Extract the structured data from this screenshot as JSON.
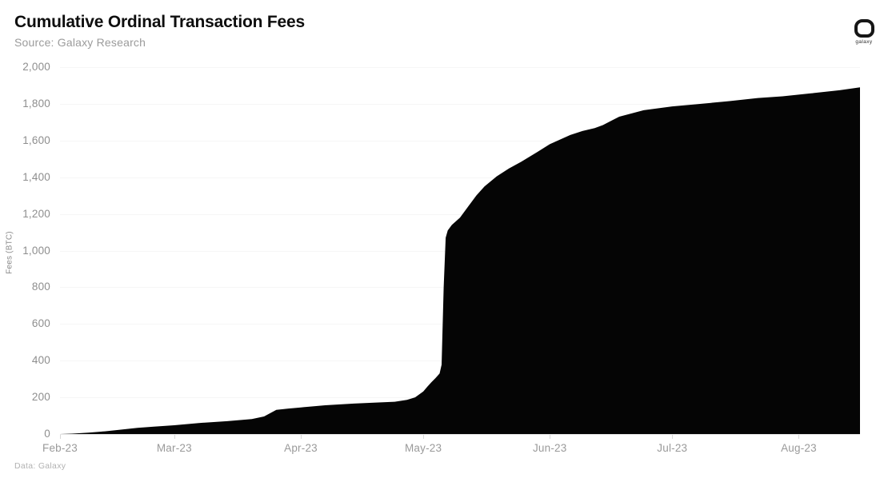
{
  "header": {
    "title": "Cumulative Ordinal Transaction Fees",
    "subtitle": "Source: Galaxy Research"
  },
  "logo": {
    "label": "galaxy"
  },
  "footer": {
    "credit": "Data: Galaxy"
  },
  "colors": {
    "background": "#ffffff",
    "area_fill": "#050505",
    "gridline": "#f6f6f6",
    "axis_line": "#e4e4e4",
    "tick_mark": "#d8d8d8",
    "axis_label": "#9a9a9a",
    "title_text": "#0e0e0e",
    "subtitle_text": "#9b9b9b"
  },
  "chart_data": {
    "type": "area",
    "title": "Cumulative Ordinal Transaction Fees",
    "subtitle": "Source: Galaxy Research",
    "xlabel": "",
    "ylabel": "Fees (BTC)",
    "ylim": [
      0,
      2000
    ],
    "grid": "horizontal",
    "legend": "none",
    "fill_color": "#050505",
    "x_unit": "days since 2023-02-01",
    "x_domain": [
      0,
      196
    ],
    "y_ticks": [
      {
        "label": "0",
        "v": 0
      },
      {
        "label": "200",
        "v": 200
      },
      {
        "label": "400",
        "v": 400
      },
      {
        "label": "600",
        "v": 600
      },
      {
        "label": "800",
        "v": 800
      },
      {
        "label": "1,000",
        "v": 1000
      },
      {
        "label": "1,200",
        "v": 1200
      },
      {
        "label": "1,400",
        "v": 1400
      },
      {
        "label": "1,600",
        "v": 1600
      },
      {
        "label": "1,800",
        "v": 1800
      },
      {
        "label": "2,000",
        "v": 2000
      }
    ],
    "x_ticks": [
      {
        "label": "Feb-23",
        "d": 0
      },
      {
        "label": "Mar-23",
        "d": 28
      },
      {
        "label": "Apr-23",
        "d": 59
      },
      {
        "label": "May-23",
        "d": 89
      },
      {
        "label": "Jun-23",
        "d": 120
      },
      {
        "label": "Jul-23",
        "d": 150
      },
      {
        "label": "Aug-23",
        "d": 181
      }
    ],
    "series": [
      {
        "name": "Cumulative ordinal transaction fees (BTC)",
        "points": [
          [
            0,
            0
          ],
          [
            3,
            2
          ],
          [
            7,
            8
          ],
          [
            11,
            15
          ],
          [
            14,
            22
          ],
          [
            19,
            34
          ],
          [
            23,
            40
          ],
          [
            28,
            48
          ],
          [
            34,
            60
          ],
          [
            41,
            70
          ],
          [
            47,
            82
          ],
          [
            50,
            96
          ],
          [
            52,
            120
          ],
          [
            53,
            132
          ],
          [
            56,
            139
          ],
          [
            59,
            145
          ],
          [
            65,
            157
          ],
          [
            72,
            166
          ],
          [
            78,
            172
          ],
          [
            82,
            176
          ],
          [
            85,
            186
          ],
          [
            87,
            200
          ],
          [
            89,
            232
          ],
          [
            90,
            258
          ],
          [
            91,
            283
          ],
          [
            92,
            305
          ],
          [
            93,
            330
          ],
          [
            93.5,
            378
          ],
          [
            94,
            800
          ],
          [
            94.5,
            1070
          ],
          [
            95,
            1110
          ],
          [
            96,
            1140
          ],
          [
            98,
            1180
          ],
          [
            100,
            1240
          ],
          [
            102,
            1300
          ],
          [
            104,
            1350
          ],
          [
            107,
            1405
          ],
          [
            110,
            1448
          ],
          [
            113,
            1484
          ],
          [
            117,
            1538
          ],
          [
            120,
            1580
          ],
          [
            125,
            1630
          ],
          [
            128,
            1652
          ],
          [
            131,
            1668
          ],
          [
            133,
            1684
          ],
          [
            137,
            1730
          ],
          [
            143,
            1765
          ],
          [
            150,
            1786
          ],
          [
            156,
            1798
          ],
          [
            164,
            1815
          ],
          [
            171,
            1832
          ],
          [
            177,
            1841
          ],
          [
            184,
            1857
          ],
          [
            191,
            1874
          ],
          [
            196,
            1890
          ]
        ]
      }
    ]
  }
}
